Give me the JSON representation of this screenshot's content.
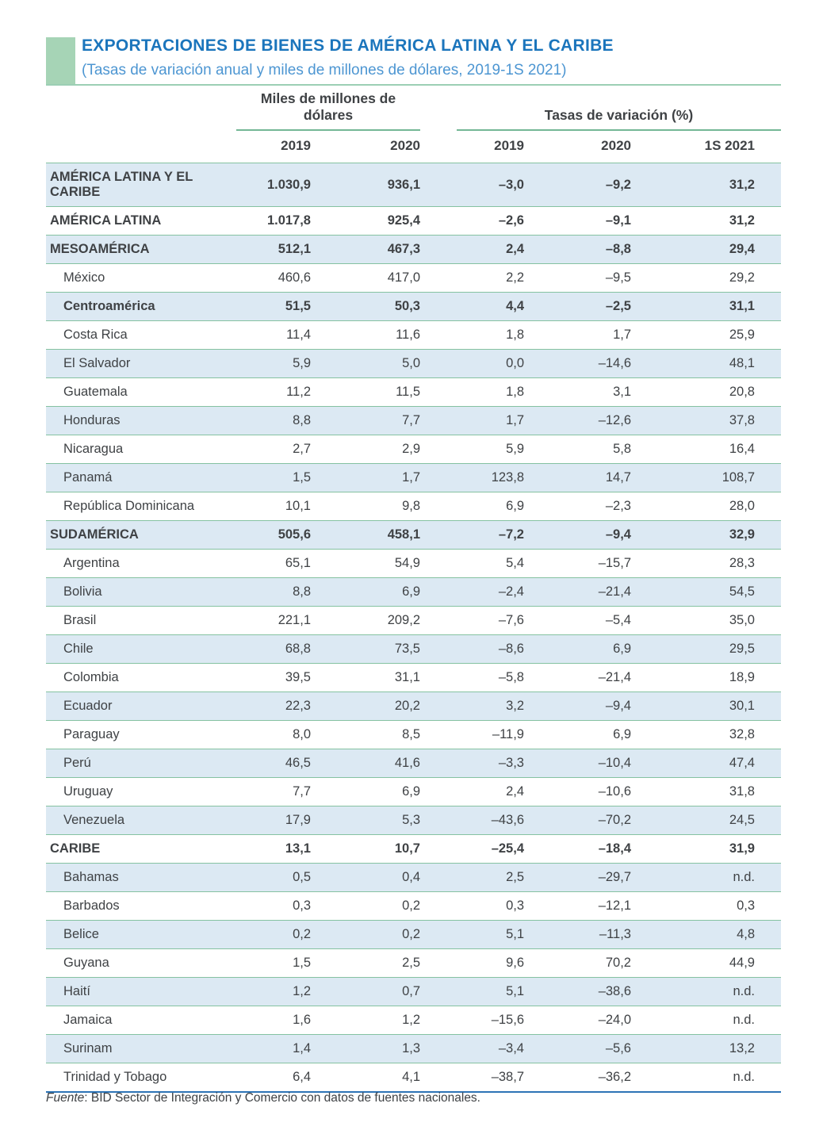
{
  "header": {
    "title": "EXPORTACIONES DE BIENES DE AMÉRICA LATINA Y EL CARIBE",
    "subtitle": "(Tasas de variación anual y miles de millones de dólares, 2019-1S 2021)"
  },
  "colors": {
    "title_blue": "#1b75bc",
    "subtitle_blue": "#4d96d2",
    "marker_green": "#a6d4b6",
    "row_shade_blue": "#dce9f3",
    "separator_green": "#85c2a1",
    "bottom_rule_blue": "#2d74b6"
  },
  "table": {
    "group_dollars": {
      "label": "Miles de millones de dólares"
    },
    "group_rates": {
      "label": "Tasas de variación (%)"
    },
    "year_columns": [
      "2019",
      "2020",
      "2019",
      "2020",
      "1S 2021"
    ],
    "rows": [
      {
        "label": "AMÉRICA LATINA Y EL CARIBE",
        "bold": true,
        "indent": false,
        "values": [
          "1.030,9",
          "936,1",
          "–3,0",
          "–9,2",
          "31,2"
        ]
      },
      {
        "label": "AMÉRICA LATINA",
        "bold": true,
        "indent": false,
        "values": [
          "1.017,8",
          "925,4",
          "–2,6",
          "–9,1",
          "31,2"
        ]
      },
      {
        "label": "MESOAMÉRICA",
        "bold": true,
        "indent": false,
        "values": [
          "512,1",
          "467,3",
          "2,4",
          "–8,8",
          "29,4"
        ]
      },
      {
        "label": "México",
        "bold": false,
        "indent": true,
        "values": [
          "460,6",
          "417,0",
          "2,2",
          "–9,5",
          "29,2"
        ]
      },
      {
        "label": "Centroamérica",
        "bold": true,
        "indent": true,
        "values": [
          "51,5",
          "50,3",
          "4,4",
          "–2,5",
          "31,1"
        ]
      },
      {
        "label": "Costa Rica",
        "bold": false,
        "indent": true,
        "values": [
          "11,4",
          "11,6",
          "1,8",
          "1,7",
          "25,9"
        ]
      },
      {
        "label": "El Salvador",
        "bold": false,
        "indent": true,
        "values": [
          "5,9",
          "5,0",
          "0,0",
          "–14,6",
          "48,1"
        ]
      },
      {
        "label": "Guatemala",
        "bold": false,
        "indent": true,
        "values": [
          "11,2",
          "11,5",
          "1,8",
          "3,1",
          "20,8"
        ]
      },
      {
        "label": "Honduras",
        "bold": false,
        "indent": true,
        "values": [
          "8,8",
          "7,7",
          "1,7",
          "–12,6",
          "37,8"
        ]
      },
      {
        "label": "Nicaragua",
        "bold": false,
        "indent": true,
        "values": [
          "2,7",
          "2,9",
          "5,9",
          "5,8",
          "16,4"
        ]
      },
      {
        "label": "Panamá",
        "bold": false,
        "indent": true,
        "values": [
          "1,5",
          "1,7",
          "123,8",
          "14,7",
          "108,7"
        ]
      },
      {
        "label": "República Dominicana",
        "bold": false,
        "indent": true,
        "values": [
          "10,1",
          "9,8",
          "6,9",
          "–2,3",
          "28,0"
        ]
      },
      {
        "label": "SUDAMÉRICA",
        "bold": true,
        "indent": false,
        "values": [
          "505,6",
          "458,1",
          "–7,2",
          "–9,4",
          "32,9"
        ]
      },
      {
        "label": "Argentina",
        "bold": false,
        "indent": true,
        "values": [
          "65,1",
          "54,9",
          "5,4",
          "–15,7",
          "28,3"
        ]
      },
      {
        "label": "Bolivia",
        "bold": false,
        "indent": true,
        "values": [
          "8,8",
          "6,9",
          "–2,4",
          "–21,4",
          "54,5"
        ]
      },
      {
        "label": "Brasil",
        "bold": false,
        "indent": true,
        "values": [
          "221,1",
          "209,2",
          "–7,6",
          "–5,4",
          "35,0"
        ]
      },
      {
        "label": "Chile",
        "bold": false,
        "indent": true,
        "values": [
          "68,8",
          "73,5",
          "–8,6",
          "6,9",
          "29,5"
        ]
      },
      {
        "label": "Colombia",
        "bold": false,
        "indent": true,
        "values": [
          "39,5",
          "31,1",
          "–5,8",
          "–21,4",
          "18,9"
        ]
      },
      {
        "label": "Ecuador",
        "bold": false,
        "indent": true,
        "values": [
          "22,3",
          "20,2",
          "3,2",
          "–9,4",
          "30,1"
        ]
      },
      {
        "label": "Paraguay",
        "bold": false,
        "indent": true,
        "values": [
          "8,0",
          "8,5",
          "–11,9",
          "6,9",
          "32,8"
        ]
      },
      {
        "label": "Perú",
        "bold": false,
        "indent": true,
        "values": [
          "46,5",
          "41,6",
          "–3,3",
          "–10,4",
          "47,4"
        ]
      },
      {
        "label": "Uruguay",
        "bold": false,
        "indent": true,
        "values": [
          "7,7",
          "6,9",
          "2,4",
          "–10,6",
          "31,8"
        ]
      },
      {
        "label": "Venezuela",
        "bold": false,
        "indent": true,
        "values": [
          "17,9",
          "5,3",
          "–43,6",
          "–70,2",
          "24,5"
        ]
      },
      {
        "label": "CARIBE",
        "bold": true,
        "indent": false,
        "values": [
          "13,1",
          "10,7",
          "–25,4",
          "–18,4",
          "31,9"
        ]
      },
      {
        "label": "Bahamas",
        "bold": false,
        "indent": true,
        "values": [
          "0,5",
          "0,4",
          "2,5",
          "–29,7",
          "n.d."
        ]
      },
      {
        "label": "Barbados",
        "bold": false,
        "indent": true,
        "values": [
          "0,3",
          "0,2",
          "0,3",
          "–12,1",
          "0,3"
        ]
      },
      {
        "label": "Belice",
        "bold": false,
        "indent": true,
        "values": [
          "0,2",
          "0,2",
          "5,1",
          "–11,3",
          "4,8"
        ]
      },
      {
        "label": "Guyana",
        "bold": false,
        "indent": true,
        "values": [
          "1,5",
          "2,5",
          "9,6",
          "70,2",
          "44,9"
        ]
      },
      {
        "label": "Haití",
        "bold": false,
        "indent": true,
        "values": [
          "1,2",
          "0,7",
          "5,1",
          "–38,6",
          "n.d."
        ]
      },
      {
        "label": "Jamaica",
        "bold": false,
        "indent": true,
        "values": [
          "1,6",
          "1,2",
          "–15,6",
          "–24,0",
          "n.d."
        ]
      },
      {
        "label": "Surinam",
        "bold": false,
        "indent": true,
        "values": [
          "1,4",
          "1,3",
          "–3,4",
          "–5,6",
          "13,2"
        ]
      },
      {
        "label": "Trinidad y Tobago",
        "bold": false,
        "indent": true,
        "values": [
          "6,4",
          "4,1",
          "–38,7",
          "–36,2",
          "n.d."
        ]
      }
    ]
  },
  "footer": {
    "source_label": "Fuente",
    "source_rest": ": BID Sector de Integración y Comercio con datos de fuentes nacionales."
  }
}
